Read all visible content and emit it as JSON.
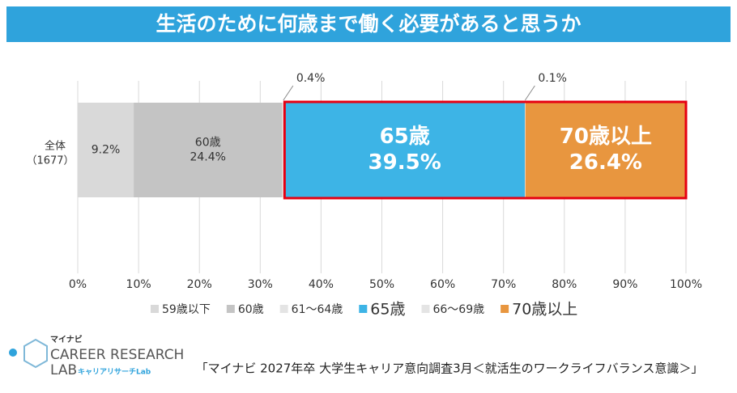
{
  "chart_data": {
    "type": "stacked_barh",
    "title": "生活のために何歳まで働く必要があると思うか",
    "categories": [
      "全体"
    ],
    "sample_sizes": [
      "（1677）"
    ],
    "series": [
      {
        "name": "59歳以下",
        "color": "#d9d9d9",
        "values": [
          9.2
        ],
        "value_labels": [
          "9.2%"
        ]
      },
      {
        "name": "60歳",
        "color": "#c4c4c4",
        "values": [
          24.4
        ],
        "value_labels": [
          "24.4%"
        ],
        "name_in_bar": true
      },
      {
        "name": "61〜64歳",
        "color": "#e4e4e4",
        "values": [
          0.4
        ],
        "value_labels": [
          "0.4%"
        ]
      },
      {
        "name": "65歳",
        "color": "#3db4e6",
        "values": [
          39.5
        ],
        "value_labels": [
          "39.5%"
        ],
        "name_in_bar": true,
        "highlight": true,
        "emphasis": true
      },
      {
        "name": "66〜69歳",
        "color": "#e4e4e4",
        "values": [
          0.1
        ],
        "value_labels": [
          "0.1%"
        ],
        "highlight": true
      },
      {
        "name": "70歳以上",
        "color": "#e8963f",
        "values": [
          26.4
        ],
        "value_labels": [
          "26.4%"
        ],
        "name_in_bar": true,
        "highlight": true,
        "emphasis": true
      }
    ],
    "xlim": [
      0,
      100
    ],
    "xticks": [
      {
        "value": 0,
        "label": "0%"
      },
      {
        "value": 10,
        "label": "10%"
      },
      {
        "value": 20,
        "label": "20%"
      },
      {
        "value": 30,
        "label": "30%"
      },
      {
        "value": 40,
        "label": "40%"
      },
      {
        "value": 50,
        "label": "50%"
      },
      {
        "value": 60,
        "label": "60%"
      },
      {
        "value": 70,
        "label": "70%"
      },
      {
        "value": 80,
        "label": "80%"
      },
      {
        "value": 90,
        "label": "90%"
      },
      {
        "value": 100,
        "label": "100%"
      }
    ],
    "grid": true,
    "source": "「マイナビ 2027年卒 大学生キャリア意向調査3月＜就活生のワークライフバランス意識＞」"
  },
  "logo": {
    "brand": "マイナビ",
    "line1": "CAREER RESEARCH",
    "line2": "LAB",
    "sub": "キャリアリサーチLab"
  }
}
